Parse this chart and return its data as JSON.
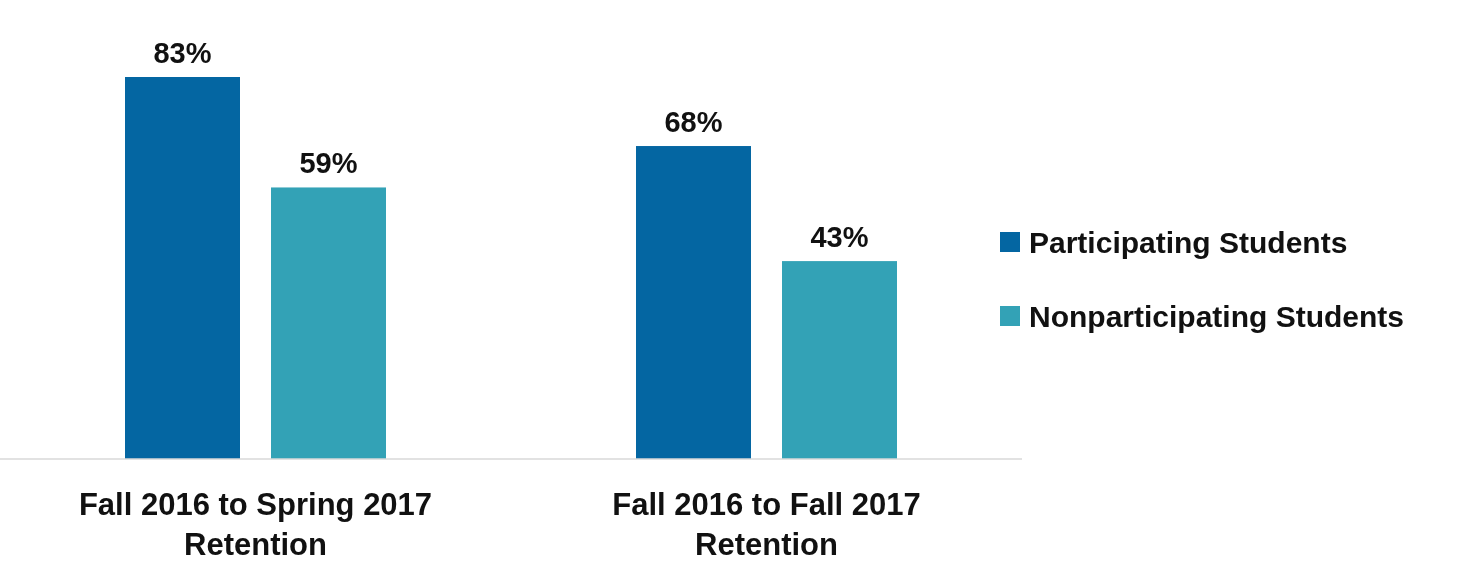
{
  "chart_data": {
    "type": "bar",
    "categories": [
      "Fall 2016 to Spring 2017 Retention",
      "Fall 2016 to Fall 2017 Retention"
    ],
    "series": [
      {
        "name": "Participating Students",
        "color": "#0466a2",
        "values": [
          83,
          68
        ],
        "value_labels": [
          "83%",
          "68%"
        ]
      },
      {
        "name": "Nonparticipating Students",
        "color": "#33a2b6",
        "values": [
          59,
          43
        ],
        "value_labels": [
          "59%",
          "43%"
        ]
      }
    ],
    "legend": "right"
  }
}
